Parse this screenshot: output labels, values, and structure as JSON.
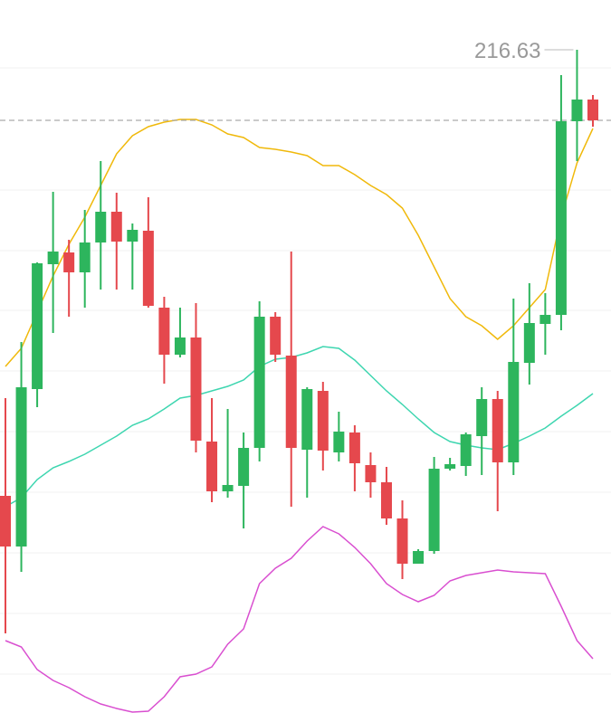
{
  "chart_data": {
    "type": "candlestick",
    "ylim": [
      209.3,
      217.18
    ],
    "up_color": "#2db55d",
    "down_color": "#e5484d",
    "max_price": 216.63,
    "candles": {
      "open": [
        211.7,
        211.14,
        212.88,
        214.26,
        214.39,
        214.17,
        214.5,
        214.84,
        214.51,
        214.63,
        213.78,
        213.26,
        213.45,
        212.3,
        211.75,
        211.81,
        212.23,
        213.68,
        213.25,
        212.21,
        212.86,
        212.18,
        212.4,
        212.04,
        211.85,
        211.45,
        210.95,
        211.09,
        212.0,
        212.03,
        212.36,
        212.77,
        212.07,
        213.17,
        213.6,
        213.7,
        215.84,
        216.08
      ],
      "close": [
        211.14,
        212.9,
        214.27,
        214.4,
        214.17,
        214.5,
        214.84,
        214.51,
        214.64,
        213.8,
        213.26,
        213.45,
        212.31,
        211.75,
        211.82,
        212.23,
        213.68,
        213.26,
        212.23,
        212.88,
        212.2,
        212.41,
        212.06,
        211.85,
        211.45,
        210.95,
        211.09,
        212.0,
        212.05,
        212.38,
        212.77,
        212.07,
        213.18,
        213.61,
        213.7,
        215.84,
        216.08,
        215.85
      ],
      "high": [
        212.78,
        213.4,
        214.28,
        215.06,
        214.53,
        214.86,
        215.4,
        215.05,
        214.71,
        215.0,
        213.9,
        213.78,
        213.83,
        212.78,
        212.66,
        212.4,
        213.85,
        213.73,
        214.4,
        212.9,
        212.96,
        212.63,
        212.48,
        212.18,
        212.02,
        211.65,
        211.11,
        212.13,
        212.12,
        212.4,
        212.9,
        212.86,
        213.88,
        214.05,
        213.94,
        216.35,
        216.63,
        216.13
      ],
      "low": [
        210.18,
        210.86,
        212.68,
        213.5,
        213.68,
        213.78,
        213.98,
        213.98,
        213.98,
        213.78,
        212.94,
        213.23,
        212.18,
        211.63,
        211.68,
        211.34,
        212.08,
        213.18,
        211.58,
        211.68,
        211.98,
        212.08,
        211.75,
        211.68,
        211.38,
        210.78,
        210.95,
        211.06,
        211.98,
        211.92,
        211.93,
        211.53,
        211.93,
        212.93,
        213.26,
        213.53,
        215.4,
        215.78
      ]
    },
    "overlays": [
      {
        "color": "#f0b90b",
        "values": [
          213.13,
          213.33,
          213.73,
          214.13,
          214.48,
          214.78,
          215.13,
          215.48,
          215.68,
          215.78,
          215.83,
          215.86,
          215.86,
          215.8,
          215.7,
          215.66,
          215.55,
          215.53,
          215.5,
          215.46,
          215.35,
          215.35,
          215.25,
          215.13,
          215.03,
          214.88,
          214.58,
          214.23,
          213.88,
          213.68,
          213.58,
          213.43,
          213.58,
          213.78,
          213.98,
          214.78,
          215.38,
          215.76
        ]
      },
      {
        "color": "#3ed6b0",
        "values": [
          211.58,
          211.68,
          211.88,
          212.01,
          212.08,
          212.16,
          212.26,
          212.36,
          212.48,
          212.55,
          212.66,
          212.78,
          212.81,
          212.86,
          212.91,
          212.98,
          213.13,
          213.21,
          213.23,
          213.28,
          213.35,
          213.33,
          213.2,
          213.03,
          212.86,
          212.71,
          212.55,
          212.4,
          212.3,
          212.26,
          212.23,
          212.21,
          212.28,
          212.36,
          212.45,
          212.58,
          212.7,
          212.83
        ]
      },
      {
        "color": "#d94fd0",
        "values": [
          210.1,
          210.03,
          209.78,
          209.66,
          209.58,
          209.48,
          209.4,
          209.35,
          209.31,
          209.32,
          209.48,
          209.7,
          209.73,
          209.81,
          210.06,
          210.23,
          210.73,
          210.9,
          211.01,
          211.2,
          211.36,
          211.28,
          211.13,
          210.95,
          210.73,
          210.61,
          210.53,
          210.6,
          210.76,
          210.82,
          210.85,
          210.88,
          210.86,
          210.85,
          210.84,
          210.48,
          210.1,
          209.9
        ]
      }
    ]
  }
}
